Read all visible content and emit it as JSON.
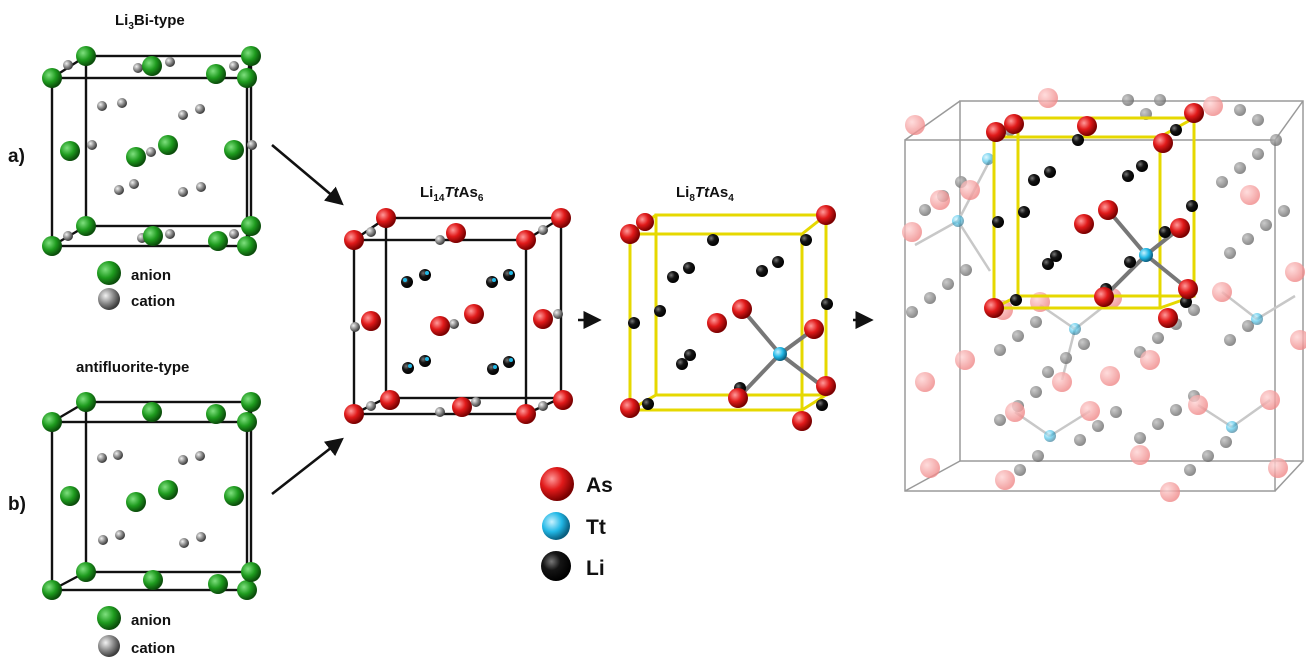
{
  "panel_a": {
    "letter": "a)",
    "title": {
      "base": "Li",
      "sub": "3",
      "rest": "Bi-type"
    },
    "legend": [
      {
        "label": "anion",
        "color": "#1e9b1e"
      },
      {
        "label": "cation",
        "color": "#8a8a8a"
      }
    ]
  },
  "panel_b": {
    "letter": "b)",
    "title": "antifluorite-type",
    "legend": [
      {
        "label": "anion",
        "color": "#1e9b1e"
      },
      {
        "label": "cation",
        "color": "#8a8a8a"
      }
    ]
  },
  "structure_1": {
    "t1": "Li",
    "s1": "14",
    "t2": "Tt",
    "t3": "As",
    "s3": "6"
  },
  "structure_2": {
    "t1": "Li",
    "s1": "8",
    "t2": "Tt",
    "t3": "As",
    "s3": "4"
  },
  "element_legend": [
    {
      "label": "As",
      "color": "#e11a1a"
    },
    {
      "label": "Tt",
      "color": "#22b8e6"
    },
    {
      "label": "Li",
      "color": "#111111"
    }
  ],
  "colors": {
    "anion": "#1e9b1e",
    "cation": "#8a8a8a",
    "as": "#e11a1a",
    "tt": "#22b8e6",
    "li": "#111111",
    "frame_yellow": "#f2e600"
  }
}
